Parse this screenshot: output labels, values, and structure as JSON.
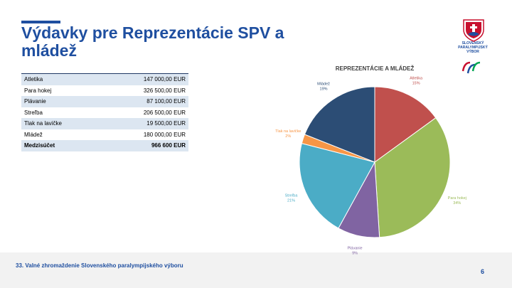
{
  "header": {
    "title": "Výdavky pre Reprezentácie SPV a mládež"
  },
  "logo": {
    "lines": [
      "SLOVENSKÝ",
      "PARALYMPIJSKÝ",
      "VÝBOR"
    ]
  },
  "table": {
    "rows": [
      [
        "Atletika",
        "147 000,00 EUR"
      ],
      [
        "Para hokej",
        "326 500,00 EUR"
      ],
      [
        "Plávanie",
        "87 100,00 EUR"
      ],
      [
        "Streľba",
        "206 500,00 EUR"
      ],
      [
        "Tlak na lavičke",
        "19 500,00 EUR"
      ],
      [
        "Mládež",
        "180 000,00 EUR"
      ],
      [
        "Medzisúčet",
        "966 600 EUR"
      ]
    ]
  },
  "chart_data": {
    "type": "pie",
    "title": "REPREZENTÁCIE A MLÁDEŽ",
    "categories": [
      "Atletika",
      "Para hokej",
      "Plávanie",
      "Streľba",
      "Tlak na lavičke",
      "Mládež"
    ],
    "values": [
      15,
      34,
      9,
      21,
      2,
      19
    ],
    "value_labels": [
      "15%",
      "34%",
      "9%",
      "21%",
      "2%",
      "19%"
    ],
    "colors": [
      "#c0504d",
      "#9bbb59",
      "#8064a2",
      "#4bacc6",
      "#f79646",
      "#2c4d75"
    ]
  },
  "footer": {
    "text": "33. Valné zhromaždenie Slovenského paralympijského výboru",
    "page": "6"
  }
}
